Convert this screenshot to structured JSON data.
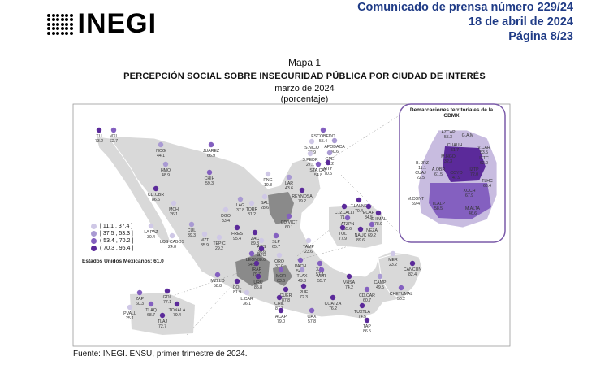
{
  "header": {
    "logo_text": "INEGI",
    "line1": "Comunicado de prensa número 229/24",
    "line2": "18 de abril de 2024",
    "line3": "Página 8/23"
  },
  "map": {
    "title": "Mapa 1",
    "subtitle": "PERCEPCIÓN SOCIAL SOBRE INSEGURIDAD PÚBLICA POR CIUDAD DE INTERÉS",
    "date": "marzo de 2024",
    "unit": "(porcentaje)",
    "national_label": "Estados Unidos Mexicanos: 61.0",
    "source": "Fuente: INEGI. ENSU, primer trimestre de 2024.",
    "cdmx_title": "Demarcaciones territoriales de la CDMX"
  },
  "legend": [
    {
      "label": "[ 11.1 , 37.4 ]",
      "color": "#cfc8e6"
    },
    {
      "label": "[ 37.5 , 53.3 ]",
      "color": "#a99ad3"
    },
    {
      "label": "( 53.4 , 70.2 ]",
      "color": "#8460c0"
    },
    {
      "label": "( 70.3 , 95.4 ]",
      "color": "#5b2a9a"
    }
  ],
  "cities": [
    {
      "name": "TIJ",
      "value": "73.2",
      "cls": 3
    },
    {
      "name": "MXL",
      "value": "62.7",
      "cls": 2
    },
    {
      "name": "NOG",
      "value": "44.1",
      "cls": 1
    },
    {
      "name": "JUAREZ",
      "value": "66.9",
      "cls": 2
    },
    {
      "name": "HMO",
      "value": "48.9",
      "cls": 1
    },
    {
      "name": "CHIH",
      "value": "59.3",
      "cls": 2
    },
    {
      "name": "CD.OBR",
      "value": "86.6",
      "cls": 3
    },
    {
      "name": "MCH",
      "value": "26.1",
      "cls": 0
    },
    {
      "name": "LA PAZ",
      "value": "30.4",
      "cls": 0
    },
    {
      "name": "CUL",
      "value": "39.3",
      "cls": 1
    },
    {
      "name": "LOS CABOS",
      "value": "24.8",
      "cls": 0
    },
    {
      "name": "MZT",
      "value": "35.9",
      "cls": 0
    },
    {
      "name": "DGO",
      "value": "33.4",
      "cls": 0
    },
    {
      "name": "LAG",
      "value": "37.8",
      "cls": 1
    },
    {
      "name": "TORR",
      "value": "31.2",
      "cls": 0
    },
    {
      "name": "SAL",
      "value": "28.6",
      "cls": 0
    },
    {
      "name": "PNG",
      "value": "19.8",
      "cls": 0
    },
    {
      "name": "LAR",
      "value": "43.6",
      "cls": 1
    },
    {
      "name": "ESCOBEDO",
      "value": "55.4",
      "cls": 2
    },
    {
      "name": "S.NICO",
      "value": "33.9",
      "cls": 0
    },
    {
      "name": "APODACA",
      "value": "40.6",
      "cls": 1
    },
    {
      "name": "S.PEDR",
      "value": "27.1",
      "cls": 0
    },
    {
      "name": "GPE",
      "value": "45.2",
      "cls": 1
    },
    {
      "name": "STA.CAT",
      "value": "54.8",
      "cls": 2
    },
    {
      "name": "MTY",
      "value": "70.5",
      "cls": 3
    },
    {
      "name": "REYNOSA",
      "value": "79.2",
      "cls": 3
    },
    {
      "name": "CD.VICT",
      "value": "60.1",
      "cls": 2
    },
    {
      "name": "TAMP",
      "value": "23.6",
      "cls": 0
    },
    {
      "name": "FRES",
      "value": "95.4",
      "cls": 3
    },
    {
      "name": "ZAC",
      "value": "89.3",
      "cls": 3
    },
    {
      "name": "TEPIC",
      "value": "29.2",
      "cls": 0
    },
    {
      "name": "AGS",
      "value": "30.6",
      "cls": 0
    },
    {
      "name": "SLP",
      "value": "65.7",
      "cls": 2
    },
    {
      "name": "GTO",
      "value": "88.0",
      "cls": 3
    },
    {
      "name": "LEON",
      "value": "64.9",
      "cls": 2
    },
    {
      "name": "IRAP",
      "value": "79.7",
      "cls": 3
    },
    {
      "name": "QRO",
      "value": "37.0",
      "cls": 0
    },
    {
      "name": "PACH",
      "value": "54.7",
      "cls": 2
    },
    {
      "name": "XAL",
      "value": "57.1",
      "cls": 2
    },
    {
      "name": "TLAX",
      "value": "49.8",
      "cls": 1
    },
    {
      "name": "VER",
      "value": "55.7",
      "cls": 2
    },
    {
      "name": "MOR",
      "value": "63.6",
      "cls": 2
    },
    {
      "name": "URU",
      "value": "85.8",
      "cls": 3
    },
    {
      "name": "PUE",
      "value": "72.3",
      "cls": 3
    },
    {
      "name": "CUER",
      "value": "87.8",
      "cls": 3
    },
    {
      "name": "COL",
      "value": "81.9",
      "cls": 3
    },
    {
      "name": "MZLLO",
      "value": "58.8",
      "cls": 2
    },
    {
      "name": "L.CAR",
      "value": "36.1",
      "cls": 0
    },
    {
      "name": "CHIL",
      "value": "87.3",
      "cls": 3
    },
    {
      "name": "ACAP",
      "value": "79.0",
      "cls": 3
    },
    {
      "name": "OAX",
      "value": "57.8",
      "cls": 2
    },
    {
      "name": "COATZA",
      "value": "76.2",
      "cls": 3
    },
    {
      "name": "VHSA",
      "value": "74.2",
      "cls": 3
    },
    {
      "name": "CD.CAR",
      "value": "60.7",
      "cls": 2
    },
    {
      "name": "CAMP",
      "value": "49.5",
      "cls": 1
    },
    {
      "name": "MER",
      "value": "23.2",
      "cls": 0
    },
    {
      "name": "CANCUN",
      "value": "82.4",
      "cls": 3
    },
    {
      "name": "CHETUMAL",
      "value": "56.2",
      "cls": 2
    },
    {
      "name": "TUXTLA",
      "value": "74.5",
      "cls": 3
    },
    {
      "name": "TAP",
      "value": "86.5",
      "cls": 3
    },
    {
      "name": "T.LALNE",
      "value": "70.4",
      "cls": 3
    },
    {
      "name": "C.IZCALLI",
      "value": "71.9",
      "cls": 3
    },
    {
      "name": "ECAP",
      "value": "84.5",
      "cls": 3
    },
    {
      "name": "CHIMAL",
      "value": "78.9",
      "cls": 3
    },
    {
      "name": "ATZPN",
      "value": "55.6",
      "cls": 2
    },
    {
      "name": "NEZA",
      "value": "69.2",
      "cls": 2
    },
    {
      "name": "TOL",
      "value": "77.9",
      "cls": 3
    },
    {
      "name": "NAUC",
      "value": "89.6",
      "cls": 3
    },
    {
      "name": "ZAP",
      "value": "60.3",
      "cls": 2
    },
    {
      "name": "GDL",
      "value": "77.1",
      "cls": 3
    },
    {
      "name": "TLAQ",
      "value": "68.7",
      "cls": 2
    },
    {
      "name": "TONALA",
      "value": "79.4",
      "cls": 3
    },
    {
      "name": "TLAJ",
      "value": "72.7",
      "cls": 3
    },
    {
      "name": "PVALL",
      "value": "25.1",
      "cls": 0
    }
  ],
  "cdmx": [
    {
      "name": "AZCAP",
      "value": "55.3",
      "cls": 2
    },
    {
      "name": "G.A.M",
      "value": "",
      "cls": 2
    },
    {
      "name": "CUAUH",
      "value": "51.7",
      "cls": 1
    },
    {
      "name": "V.CAR",
      "value": "53.5",
      "cls": 2
    },
    {
      "name": "M.HGO",
      "value": "32.3",
      "cls": 0
    },
    {
      "name": "IZTC",
      "value": "62.0",
      "cls": 2
    },
    {
      "name": "B. JRZ",
      "value": "11.1",
      "cls": 0
    },
    {
      "name": "CUAJ",
      "value": "22.5",
      "cls": 0
    },
    {
      "name": "A.OBR",
      "value": "61.5",
      "cls": 2
    },
    {
      "name": "COYO",
      "value": "47.9",
      "cls": 1
    },
    {
      "name": "IZTP",
      "value": "72.0",
      "cls": 3
    },
    {
      "name": "TLHC",
      "value": "63.4",
      "cls": 2
    },
    {
      "name": "M.CONT",
      "value": "59.4",
      "cls": 2
    },
    {
      "name": "XOCH",
      "value": "67.9",
      "cls": 2
    },
    {
      "name": "TLALP",
      "value": "58.5",
      "cls": 2
    },
    {
      "name": "M.ALTA",
      "value": "46.6",
      "cls": 1
    }
  ]
}
